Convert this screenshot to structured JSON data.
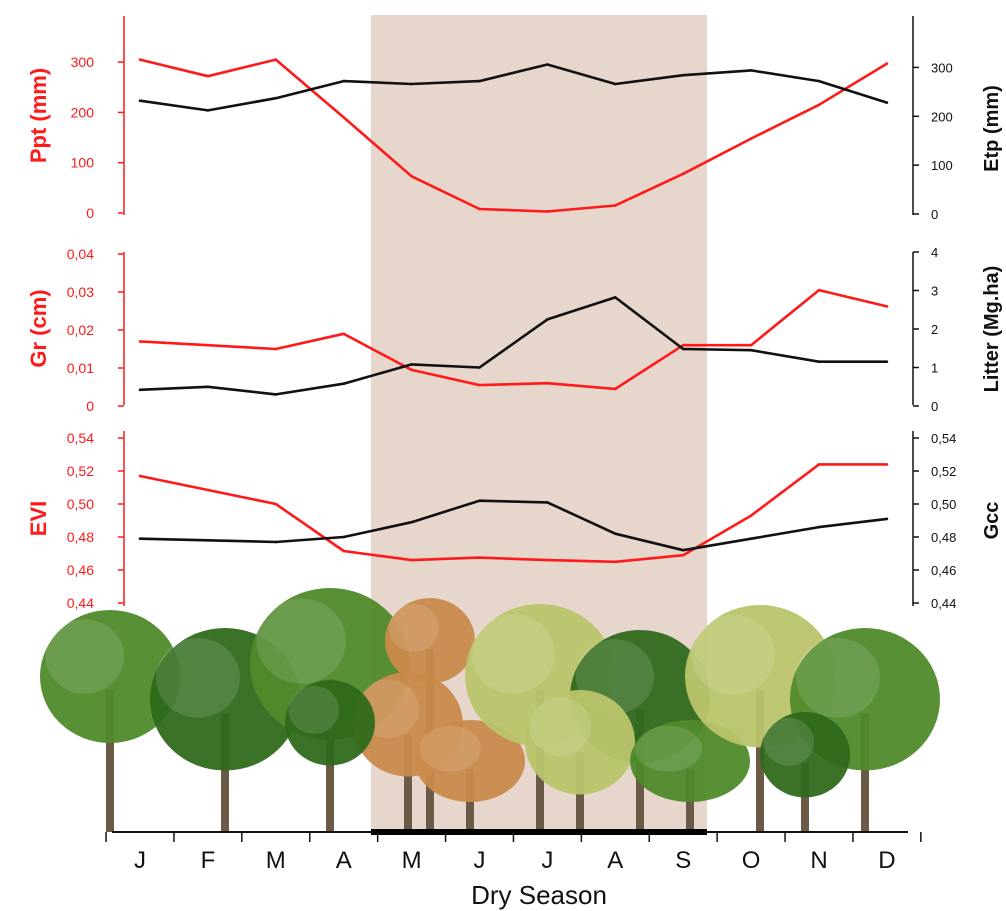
{
  "colors": {
    "left_series": "#ff1a1a",
    "right_series": "#111111",
    "dry_season_band": "#e6d6cc",
    "axis_left": "#ff1a1a",
    "axis_right": "#111111",
    "foliage_green": "#4f8a2b",
    "foliage_green_dark": "#2f6a1c",
    "foliage_brown": "#c98a4b",
    "foliage_yellow": "#b9c46a",
    "trunk": "#6b5a45"
  },
  "months": [
    "J",
    "F",
    "M",
    "A",
    "M",
    "J",
    "J",
    "A",
    "S",
    "O",
    "N",
    "D"
  ],
  "dry_season": {
    "label": "Dry Season",
    "start_month_index": 4,
    "end_month_index": 8
  },
  "chart_data": [
    {
      "type": "line",
      "left_axis": {
        "label": "Ppt (mm)",
        "ticks": [
          "0",
          "100",
          "200",
          "300"
        ],
        "range": [
          0,
          330
        ]
      },
      "right_axis": {
        "label": "Etp (mm)",
        "ticks": [
          "0",
          "100",
          "200",
          "300"
        ],
        "range": [
          0,
          350
        ]
      },
      "series": [
        {
          "axis": "left",
          "color": "#ff1a1a",
          "values": [
            305,
            272,
            305,
            190,
            73,
            8,
            3,
            15,
            78,
            148,
            215,
            297
          ]
        },
        {
          "axis": "right",
          "color": "#111111",
          "values": [
            232,
            212,
            237,
            272,
            266,
            272,
            306,
            266,
            284,
            294,
            272,
            228
          ]
        }
      ]
    },
    {
      "type": "line",
      "left_axis": {
        "label": "Gr (cm)",
        "ticks": [
          "0",
          "0,01",
          "0,02",
          "0,03",
          "0,04"
        ],
        "range": [
          0,
          0.04
        ]
      },
      "right_axis": {
        "label": "Litter (Mg.ha)",
        "ticks": [
          "0",
          "1",
          "2",
          "3",
          "4"
        ],
        "range": [
          0,
          4
        ]
      },
      "series": [
        {
          "axis": "left",
          "color": "#ff1a1a",
          "values": [
            0.017,
            0.016,
            0.015,
            0.019,
            0.0095,
            0.0055,
            0.006,
            0.0045,
            0.016,
            0.016,
            0.0305,
            0.0262
          ]
        },
        {
          "axis": "right",
          "color": "#111111",
          "values": [
            0.42,
            0.5,
            0.3,
            0.58,
            1.08,
            1.0,
            2.25,
            2.82,
            1.48,
            1.45,
            1.15,
            1.15
          ]
        }
      ]
    },
    {
      "type": "line",
      "left_axis": {
        "label": "EVI",
        "ticks": [
          "0,44",
          "0,46",
          "0,48",
          "0,50",
          "0,52",
          "0,54"
        ],
        "range": [
          0.44,
          0.54
        ]
      },
      "right_axis": {
        "label": "Gcc",
        "ticks": [
          "0,44",
          "0,46",
          "0,48",
          "0,50",
          "0,52",
          "0,54"
        ],
        "range": [
          0.44,
          0.54
        ]
      },
      "series": [
        {
          "axis": "left",
          "color": "#ff1a1a",
          "values": [
            0.517,
            0.5085,
            0.5,
            0.4715,
            0.466,
            0.4675,
            0.466,
            0.465,
            0.469,
            0.493,
            0.524,
            0.524
          ]
        },
        {
          "axis": "right",
          "color": "#111111",
          "values": [
            0.479,
            0.478,
            0.477,
            0.48,
            0.489,
            0.502,
            0.501,
            0.482,
            0.472,
            0.479,
            0.486,
            0.491
          ]
        }
      ]
    }
  ]
}
